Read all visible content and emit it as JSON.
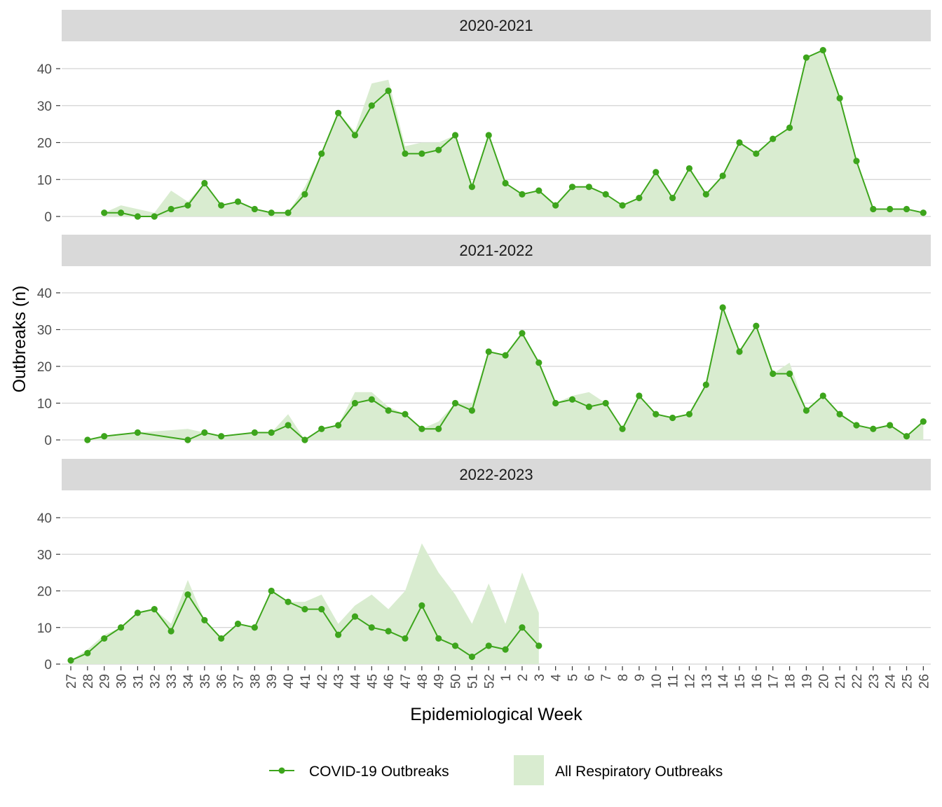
{
  "chart_data": {
    "type": "line",
    "xlabel": "Epidemiological Week",
    "ylabel": "Outbreaks (n)",
    "weeks": [
      "27",
      "28",
      "29",
      "30",
      "31",
      "32",
      "33",
      "34",
      "35",
      "36",
      "37",
      "38",
      "39",
      "40",
      "41",
      "42",
      "43",
      "44",
      "45",
      "46",
      "47",
      "48",
      "49",
      "50",
      "51",
      "52",
      "1",
      "2",
      "3",
      "4",
      "5",
      "6",
      "7",
      "8",
      "9",
      "10",
      "11",
      "12",
      "13",
      "14",
      "15",
      "16",
      "17",
      "18",
      "19",
      "20",
      "21",
      "22",
      "23",
      "24",
      "25",
      "26"
    ],
    "yticks": [
      "0",
      "10",
      "20",
      "30",
      "40"
    ],
    "ylim": [
      0,
      45
    ],
    "grid": true,
    "legend_position": "bottom",
    "colors": {
      "covid": "#3da51c",
      "resp": "#d9ecd0",
      "strip": "#d9d9d9",
      "grid": "#d3d3d3"
    },
    "legend": [
      {
        "label": "COVID-19 Outbreaks"
      },
      {
        "label": "All Respiratory Outbreaks"
      }
    ],
    "panels": [
      {
        "label": "2020-2021",
        "covid": [
          null,
          null,
          1,
          1,
          0,
          0,
          2,
          3,
          9,
          3,
          4,
          2,
          1,
          1,
          6,
          17,
          28,
          22,
          30,
          34,
          17,
          17,
          18,
          22,
          8,
          22,
          9,
          6,
          7,
          3,
          8,
          8,
          6,
          3,
          5,
          12,
          5,
          13,
          6,
          11,
          20,
          17,
          21,
          24,
          43,
          45,
          32,
          15,
          2,
          2,
          2,
          1
        ],
        "all_resp": [
          null,
          null,
          1,
          3,
          2,
          1,
          7,
          4,
          9,
          3,
          4,
          2,
          1,
          1,
          8,
          17,
          28,
          23,
          36,
          37,
          19,
          20,
          20,
          22,
          8,
          22,
          9,
          6,
          7,
          3,
          8,
          8,
          6,
          3,
          5,
          12,
          5,
          13,
          6,
          11,
          20,
          17,
          21,
          24,
          43,
          45,
          32,
          15,
          2,
          2,
          2,
          1
        ]
      },
      {
        "label": "2021-2022",
        "covid": [
          null,
          0,
          1,
          null,
          2,
          null,
          null,
          0,
          2,
          1,
          null,
          2,
          2,
          4,
          0,
          3,
          4,
          10,
          11,
          8,
          7,
          3,
          3,
          10,
          8,
          24,
          23,
          29,
          21,
          10,
          11,
          9,
          10,
          3,
          12,
          7,
          6,
          7,
          15,
          36,
          24,
          31,
          18,
          18,
          8,
          12,
          7,
          4,
          3,
          4,
          1,
          5
        ],
        "all_resp": [
          null,
          0,
          1,
          null,
          2,
          null,
          null,
          3,
          2,
          1,
          null,
          2,
          2,
          7,
          0,
          3,
          4,
          13,
          13,
          9,
          7,
          3,
          5,
          10,
          10,
          24,
          23,
          29,
          21,
          10,
          12,
          13,
          10,
          3,
          12,
          7,
          6,
          7,
          15,
          36,
          24,
          31,
          18,
          21,
          8,
          12,
          7,
          4,
          3,
          4,
          1,
          5
        ]
      },
      {
        "label": "2022-2023",
        "covid": [
          1,
          3,
          7,
          10,
          14,
          15,
          9,
          19,
          12,
          7,
          11,
          10,
          20,
          17,
          15,
          15,
          8,
          13,
          10,
          9,
          7,
          16,
          7,
          5,
          2,
          5,
          4,
          10,
          5,
          null,
          null,
          null,
          null,
          null,
          null,
          null,
          null,
          null,
          null,
          null,
          null,
          null,
          null,
          null,
          null,
          null,
          null,
          null,
          null,
          null,
          null,
          null
        ],
        "all_resp": [
          1,
          4,
          8,
          10,
          14,
          15,
          11,
          23,
          12,
          7,
          11,
          10,
          20,
          17,
          17,
          19,
          11,
          16,
          19,
          15,
          20,
          33,
          25,
          19,
          11,
          22,
          11,
          25,
          14,
          null,
          null,
          null,
          null,
          null,
          null,
          null,
          null,
          null,
          null,
          null,
          null,
          null,
          null,
          null,
          null,
          null,
          null,
          null,
          null,
          null,
          null,
          null
        ]
      }
    ]
  }
}
